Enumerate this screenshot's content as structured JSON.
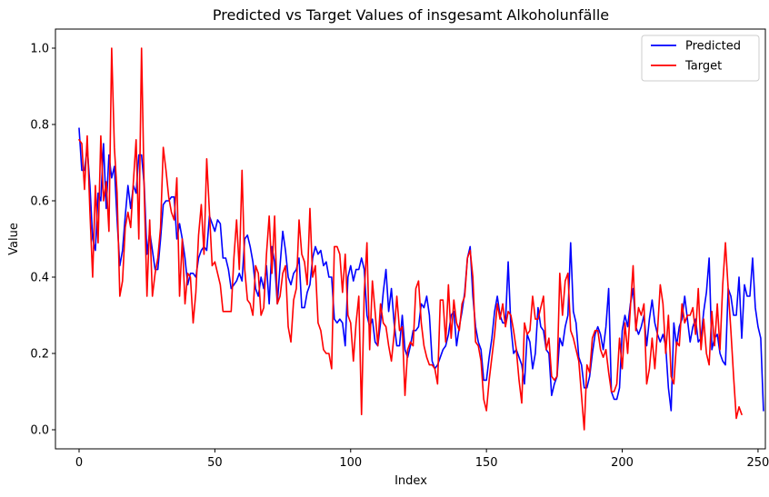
{
  "chart_data": {
    "type": "line",
    "title": "Predicted vs Target Values of insgesamt Alkoholunfälle",
    "xlabel": "Index",
    "ylabel": "Value",
    "xlim": [
      -8.7,
      252.7
    ],
    "ylim": [
      -0.05,
      1.05
    ],
    "xticks": [
      0,
      50,
      100,
      150,
      200,
      250
    ],
    "yticks": [
      0.0,
      0.2,
      0.4,
      0.6,
      0.8,
      1.0
    ],
    "ytick_labels": [
      "0.0",
      "0.2",
      "0.4",
      "0.6",
      "0.8",
      "1.0"
    ],
    "legend_position": "top-right",
    "grid": false,
    "series": [
      {
        "name": "Predicted",
        "color": "#0000ff",
        "values": [
          0.79,
          0.68,
          0.68,
          0.74,
          0.64,
          0.5,
          0.47,
          0.62,
          0.6,
          0.75,
          0.58,
          0.72,
          0.66,
          0.69,
          0.55,
          0.43,
          0.47,
          0.56,
          0.64,
          0.58,
          0.64,
          0.62,
          0.72,
          0.72,
          0.64,
          0.46,
          0.52,
          0.47,
          0.42,
          0.42,
          0.5,
          0.59,
          0.6,
          0.6,
          0.61,
          0.61,
          0.5,
          0.54,
          0.5,
          0.45,
          0.38,
          0.41,
          0.41,
          0.4,
          0.45,
          0.47,
          0.48,
          0.47,
          0.56,
          0.54,
          0.52,
          0.55,
          0.54,
          0.45,
          0.45,
          0.42,
          0.37,
          0.38,
          0.39,
          0.41,
          0.39,
          0.5,
          0.51,
          0.48,
          0.44,
          0.37,
          0.35,
          0.4,
          0.37,
          0.43,
          0.33,
          0.48,
          0.44,
          0.33,
          0.43,
          0.52,
          0.47,
          0.4,
          0.38,
          0.41,
          0.42,
          0.45,
          0.32,
          0.32,
          0.36,
          0.38,
          0.45,
          0.48,
          0.46,
          0.47,
          0.43,
          0.44,
          0.4,
          0.4,
          0.29,
          0.28,
          0.29,
          0.28,
          0.22,
          0.4,
          0.43,
          0.39,
          0.42,
          0.42,
          0.45,
          0.42,
          0.3,
          0.27,
          0.29,
          0.23,
          0.22,
          0.28,
          0.36,
          0.42,
          0.31,
          0.37,
          0.28,
          0.22,
          0.22,
          0.3,
          0.21,
          0.19,
          0.22,
          0.26,
          0.26,
          0.27,
          0.33,
          0.32,
          0.35,
          0.3,
          0.18,
          0.16,
          0.17,
          0.19,
          0.21,
          0.22,
          0.25,
          0.3,
          0.31,
          0.22,
          0.27,
          0.31,
          0.36,
          0.45,
          0.48,
          0.35,
          0.27,
          0.23,
          0.21,
          0.13,
          0.13,
          0.19,
          0.24,
          0.31,
          0.35,
          0.3,
          0.28,
          0.28,
          0.44,
          0.27,
          0.2,
          0.21,
          0.19,
          0.17,
          0.12,
          0.25,
          0.23,
          0.16,
          0.2,
          0.32,
          0.27,
          0.26,
          0.21,
          0.2,
          0.09,
          0.12,
          0.14,
          0.24,
          0.22,
          0.27,
          0.3,
          0.49,
          0.31,
          0.28,
          0.19,
          0.17,
          0.11,
          0.11,
          0.14,
          0.2,
          0.25,
          0.27,
          0.25,
          0.21,
          0.27,
          0.37,
          0.1,
          0.08,
          0.08,
          0.11,
          0.26,
          0.3,
          0.27,
          0.33,
          0.37,
          0.27,
          0.25,
          0.27,
          0.3,
          0.22,
          0.29,
          0.34,
          0.28,
          0.25,
          0.23,
          0.25,
          0.22,
          0.11,
          0.05,
          0.28,
          0.22,
          0.27,
          0.29,
          0.35,
          0.29,
          0.23,
          0.27,
          0.29,
          0.23,
          0.24,
          0.31,
          0.36,
          0.45,
          0.21,
          0.24,
          0.25,
          0.2,
          0.18,
          0.17,
          0.37,
          0.35,
          0.3,
          0.3,
          0.4,
          0.24,
          0.38,
          0.35,
          0.35,
          0.45,
          0.32,
          0.27,
          0.24,
          0.05
        ]
      },
      {
        "name": "Target",
        "color": "#ff0000",
        "values": [
          0.76,
          0.75,
          0.63,
          0.77,
          0.57,
          0.4,
          0.64,
          0.49,
          0.77,
          0.6,
          0.65,
          0.52,
          1.0,
          0.74,
          0.62,
          0.35,
          0.39,
          0.53,
          0.57,
          0.53,
          0.65,
          0.76,
          0.5,
          1.0,
          0.62,
          0.35,
          0.55,
          0.35,
          0.41,
          0.45,
          0.53,
          0.74,
          0.68,
          0.61,
          0.57,
          0.55,
          0.66,
          0.35,
          0.5,
          0.33,
          0.41,
          0.4,
          0.28,
          0.36,
          0.51,
          0.59,
          0.46,
          0.71,
          0.57,
          0.43,
          0.44,
          0.41,
          0.38,
          0.31,
          0.31,
          0.31,
          0.31,
          0.45,
          0.55,
          0.42,
          0.68,
          0.42,
          0.34,
          0.33,
          0.3,
          0.43,
          0.41,
          0.3,
          0.32,
          0.46,
          0.56,
          0.41,
          0.56,
          0.33,
          0.35,
          0.41,
          0.43,
          0.27,
          0.23,
          0.34,
          0.37,
          0.55,
          0.46,
          0.44,
          0.38,
          0.58,
          0.4,
          0.43,
          0.28,
          0.26,
          0.21,
          0.2,
          0.2,
          0.16,
          0.48,
          0.48,
          0.46,
          0.36,
          0.46,
          0.3,
          0.28,
          0.18,
          0.28,
          0.35,
          0.04,
          0.36,
          0.49,
          0.21,
          0.39,
          0.31,
          0.22,
          0.33,
          0.28,
          0.27,
          0.22,
          0.18,
          0.25,
          0.35,
          0.26,
          0.27,
          0.09,
          0.21,
          0.23,
          0.22,
          0.37,
          0.39,
          0.28,
          0.22,
          0.19,
          0.17,
          0.17,
          0.16,
          0.12,
          0.34,
          0.34,
          0.23,
          0.38,
          0.24,
          0.34,
          0.28,
          0.26,
          0.33,
          0.35,
          0.45,
          0.47,
          0.4,
          0.23,
          0.22,
          0.18,
          0.08,
          0.05,
          0.13,
          0.19,
          0.25,
          0.33,
          0.29,
          0.33,
          0.27,
          0.31,
          0.3,
          0.26,
          0.21,
          0.13,
          0.07,
          0.28,
          0.25,
          0.26,
          0.35,
          0.29,
          0.29,
          0.32,
          0.35,
          0.21,
          0.24,
          0.14,
          0.13,
          0.14,
          0.41,
          0.3,
          0.39,
          0.41,
          0.26,
          0.24,
          0.21,
          0.18,
          0.09,
          0.0,
          0.17,
          0.15,
          0.24,
          0.26,
          0.26,
          0.21,
          0.19,
          0.21,
          0.15,
          0.1,
          0.1,
          0.12,
          0.24,
          0.16,
          0.28,
          0.2,
          0.32,
          0.43,
          0.26,
          0.32,
          0.3,
          0.33,
          0.12,
          0.16,
          0.24,
          0.16,
          0.26,
          0.38,
          0.33,
          0.2,
          0.3,
          0.14,
          0.12,
          0.23,
          0.22,
          0.33,
          0.28,
          0.3,
          0.3,
          0.32,
          0.25,
          0.37,
          0.21,
          0.29,
          0.2,
          0.17,
          0.31,
          0.22,
          0.33,
          0.21,
          0.38,
          0.49,
          0.37,
          0.26,
          0.14,
          0.03,
          0.06,
          0.04
        ]
      }
    ]
  }
}
